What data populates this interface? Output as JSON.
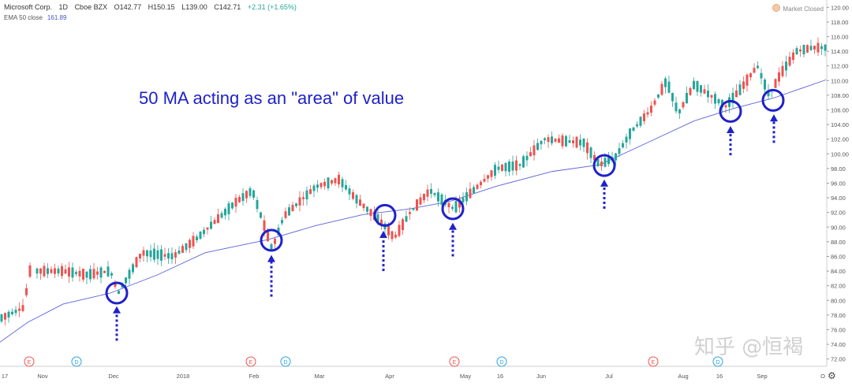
{
  "header": {
    "symbol": "Microsoft Corp.",
    "interval": "1D",
    "exchange": "Cboe BZX",
    "open": "O142.77",
    "high": "H150.15",
    "low": "L139.00",
    "close": "C142.71",
    "change": "+2.31 (+1.65%)",
    "change_color": "#26a69a"
  },
  "indicator": {
    "label": "EMA 50 close",
    "value": "161.89",
    "color": "#4455cc"
  },
  "market_status": "Market Closed",
  "annotation": "50 MA acting as an \"area\" of value",
  "watermark": "知乎 @恒褐",
  "colors": {
    "up": "#26a69a",
    "down": "#ef5350",
    "ema": "#5a62d8",
    "circle": "#1f22c8",
    "arrow": "#1f22c8",
    "axis_text": "#555555"
  },
  "chart_data": {
    "type": "candlestick",
    "ylim": [
      71,
      121
    ],
    "y_ticks": [
      "72.00",
      "74.00",
      "76.00",
      "78.00",
      "80.00",
      "82.00",
      "84.00",
      "86.00",
      "88.00",
      "90.00",
      "92.00",
      "94.00",
      "96.00",
      "98.00",
      "100.00",
      "102.00",
      "104.00",
      "106.00",
      "108.00",
      "110.00",
      "112.00",
      "114.00",
      "116.00",
      "118.00",
      "120.00"
    ],
    "x_labels": [
      "17",
      "Nov",
      "Dec",
      "2018",
      "Feb",
      "Mar",
      "Apr",
      "May",
      "16",
      "Jun",
      "Jul",
      "Aug",
      "16",
      "Sep",
      "O"
    ],
    "events": [
      {
        "type": "E",
        "after": "Nov",
        "color": "#ef5350"
      },
      {
        "type": "D",
        "after": "Nov",
        "color": "#29a3e0"
      },
      {
        "type": "E",
        "after": "Feb",
        "color": "#ef5350"
      },
      {
        "type": "D",
        "after": "Feb",
        "color": "#29a3e0"
      },
      {
        "type": "E",
        "after": "May",
        "color": "#ef5350"
      },
      {
        "type": "D",
        "after": "16",
        "color": "#29a3e0"
      },
      {
        "type": "E",
        "after": "Jul",
        "color": "#ef5350"
      },
      {
        "type": "D",
        "after": "Aug",
        "color": "#29a3e0"
      }
    ],
    "ema_series": {
      "name": "EMA 50 close",
      "points": [
        [
          0,
          74.3
        ],
        [
          35,
          77.0
        ],
        [
          80,
          79.5
        ],
        [
          140,
          81.0
        ],
        [
          200,
          83.5
        ],
        [
          260,
          86.5
        ],
        [
          340,
          88.3
        ],
        [
          400,
          90.2
        ],
        [
          460,
          91.7
        ],
        [
          520,
          92.5
        ],
        [
          570,
          93.5
        ],
        [
          630,
          95.6
        ],
        [
          700,
          97.6
        ],
        [
          760,
          98.5
        ],
        [
          820,
          101.5
        ],
        [
          880,
          104.5
        ],
        [
          930,
          106.2
        ],
        [
          980,
          107.6
        ],
        [
          1047,
          110.1
        ]
      ]
    },
    "price_anchors": [
      [
        0,
        77.5
      ],
      [
        30,
        79.0
      ],
      [
        38,
        84.0
      ],
      [
        80,
        84.0
      ],
      [
        110,
        83.5
      ],
      [
        140,
        84.0
      ],
      [
        150,
        81.0
      ],
      [
        180,
        86.5
      ],
      [
        220,
        86.0
      ],
      [
        250,
        88.5
      ],
      [
        300,
        93.5
      ],
      [
        320,
        95.0
      ],
      [
        345,
        87.0
      ],
      [
        360,
        91.5
      ],
      [
        400,
        95.5
      ],
      [
        430,
        96.5
      ],
      [
        450,
        94.0
      ],
      [
        470,
        92.0
      ],
      [
        485,
        90.5
      ],
      [
        500,
        88.5
      ],
      [
        520,
        92.0
      ],
      [
        545,
        95.0
      ],
      [
        575,
        92.5
      ],
      [
        600,
        95.0
      ],
      [
        630,
        98.0
      ],
      [
        660,
        98.5
      ],
      [
        690,
        102.0
      ],
      [
        740,
        101.5
      ],
      [
        760,
        98.5
      ],
      [
        780,
        99.5
      ],
      [
        800,
        103.0
      ],
      [
        825,
        106.0
      ],
      [
        845,
        110.0
      ],
      [
        860,
        105.5
      ],
      [
        880,
        109.5
      ],
      [
        900,
        108.0
      ],
      [
        920,
        106.5
      ],
      [
        940,
        109.0
      ],
      [
        960,
        112.0
      ],
      [
        975,
        108.0
      ],
      [
        990,
        111.0
      ],
      [
        1010,
        114.0
      ],
      [
        1030,
        114.5
      ],
      [
        1045,
        114.5
      ]
    ],
    "highlight_circles": [
      [
        148,
        81.0
      ],
      [
        344,
        88.2
      ],
      [
        488,
        91.6
      ],
      [
        574,
        92.5
      ],
      [
        766,
        98.4
      ],
      [
        926,
        105.8
      ],
      [
        980,
        107.3
      ]
    ],
    "arrows": [
      {
        "x": 148,
        "from": 74.5,
        "to": 79.2
      },
      {
        "x": 344,
        "from": 80.5,
        "to": 86.2
      },
      {
        "x": 486,
        "from": 84.0,
        "to": 89.5
      },
      {
        "x": 574,
        "from": 86.0,
        "to": 90.6
      },
      {
        "x": 766,
        "from": 92.5,
        "to": 96.5
      },
      {
        "x": 926,
        "from": 99.8,
        "to": 103.8
      },
      {
        "x": 981,
        "from": 101.5,
        "to": 105.4
      }
    ]
  }
}
